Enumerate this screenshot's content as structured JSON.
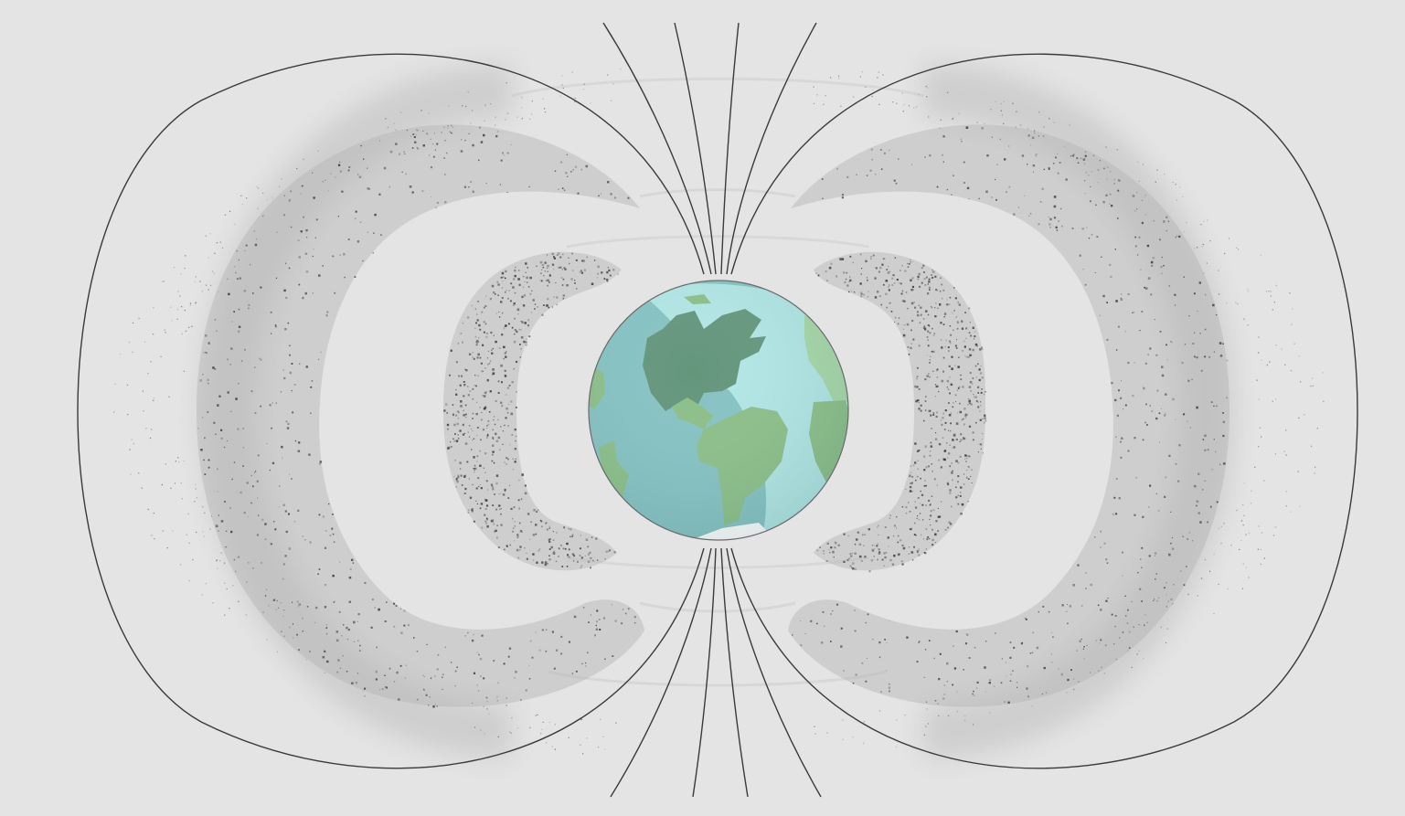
{
  "diagram": {
    "subject": "earth-radiation-belts",
    "colors": {
      "background": "#e4e4e4",
      "field_line": "#3a3a3a",
      "belt_particle": "#2b2b2b",
      "belt_haze": "#b4b4b4",
      "ocean_dark": "#86c2c2",
      "ocean_light": "#b2e6e6",
      "land_green": "#8cbf88",
      "land_dark": "#64967c",
      "land_light": "#a8d8a8",
      "ice": "#ffffff"
    },
    "belts": [
      {
        "name": "inner-belt"
      },
      {
        "name": "outer-belt"
      }
    ],
    "field_lines": {
      "polar_line_count": 4
    }
  }
}
